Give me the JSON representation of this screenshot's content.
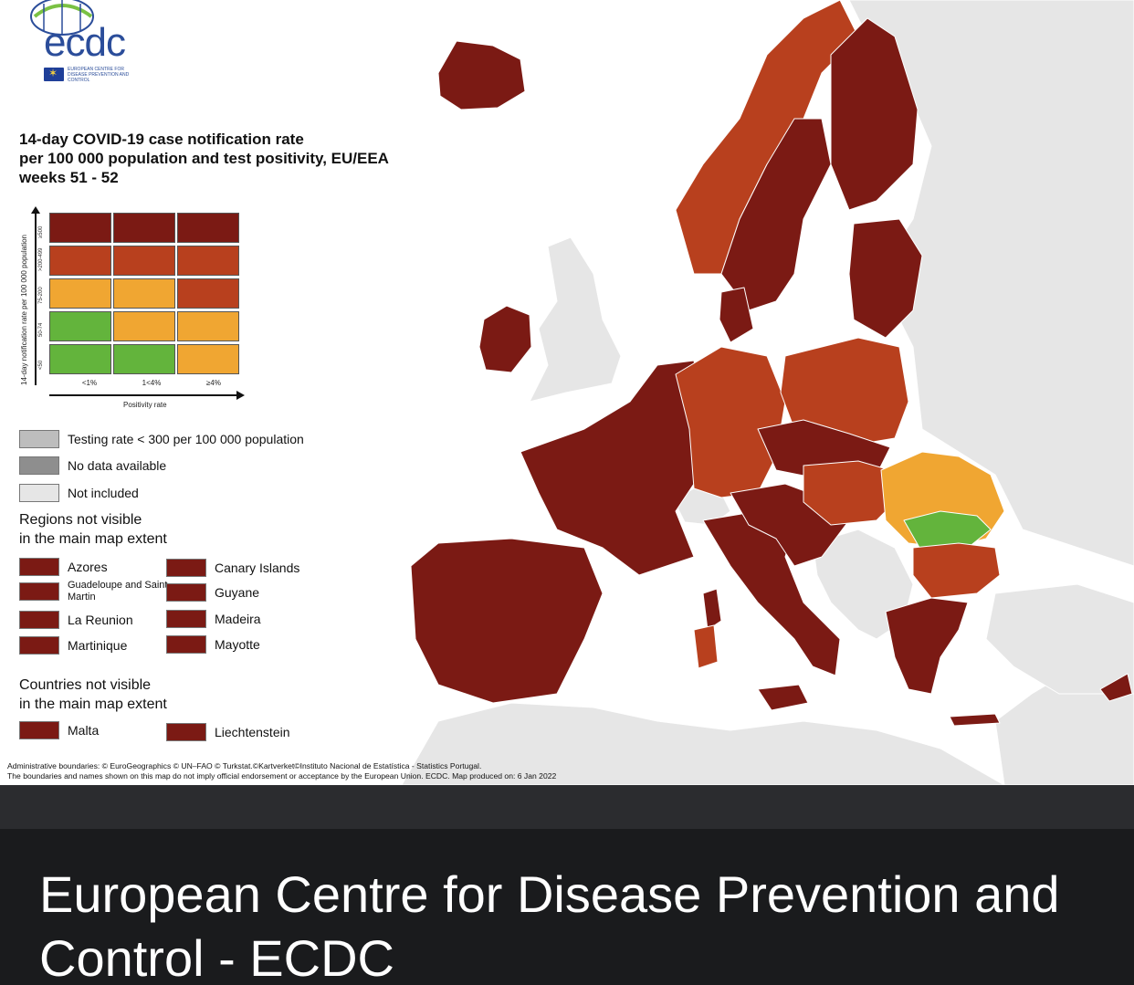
{
  "logo": {
    "wordmark": "ecdc",
    "subtitle": "EUROPEAN CENTRE FOR DISEASE PREVENTION AND CONTROL"
  },
  "title": {
    "lines": [
      "14-day COVID-19 case notification rate",
      "per 100 000 population and test positivity, EU/EEA",
      "weeks 51 - 52"
    ]
  },
  "matrix": {
    "y_axis_title": "14-day notification rate per 100 000 population",
    "x_axis_title": "Positivity rate",
    "row_labels": [
      "≥500",
      ">200-499",
      "75-200",
      "50-74",
      "<50"
    ],
    "col_labels": [
      "<1%",
      "1<4%",
      "≥4%"
    ],
    "cells": [
      [
        "#7b1a14",
        "#7b1a14",
        "#7b1a14"
      ],
      [
        "#b8401e",
        "#b8401e",
        "#b8401e"
      ],
      [
        "#f0a632",
        "#f0a632",
        "#b8401e"
      ],
      [
        "#63b43c",
        "#f0a632",
        "#f0a632"
      ],
      [
        "#63b43c",
        "#63b43c",
        "#f0a632"
      ]
    ]
  },
  "legend": {
    "status_items": [
      {
        "label": "Testing rate < 300 per 100 000 population",
        "color": "#bdbdbd"
      },
      {
        "label": "No data available",
        "color": "#8e8e8e"
      },
      {
        "label": "Not included",
        "color": "#e6e6e6"
      }
    ],
    "regions_heading": [
      "Regions not visible",
      "in the main map extent"
    ],
    "regions_left": [
      "Azores",
      "Guadeloupe and Saint Martin",
      "La Reunion",
      "Martinique"
    ],
    "regions_right": [
      "Canary Islands",
      "Guyane",
      "Madeira",
      "Mayotte"
    ],
    "countries_heading": [
      "Countries not visible",
      "in the main map extent"
    ],
    "countries": [
      "Malta",
      "Liechtenstein"
    ],
    "dark_red": "#7b1a14"
  },
  "footer": {
    "lines": [
      "Administrative boundaries: © EuroGeographics © UN–FAO © Turkstat.©Kartverket©Instituto Nacional de Estatística - Statistics Portugal.",
      "The boundaries and names shown on this map do not imply official endorsement or acceptance by the European Union. ECDC. Map produced on: 6 Jan 2022"
    ]
  },
  "caption": {
    "text": "European Centre for Disease Prevention and Control - ECDC"
  },
  "colors": {
    "dark_red": "#7b1a14",
    "red_orange": "#b8401e",
    "orange": "#f0a632",
    "green": "#63b43c",
    "not_included": "#e6e6e6",
    "sea": "#ffffff"
  }
}
